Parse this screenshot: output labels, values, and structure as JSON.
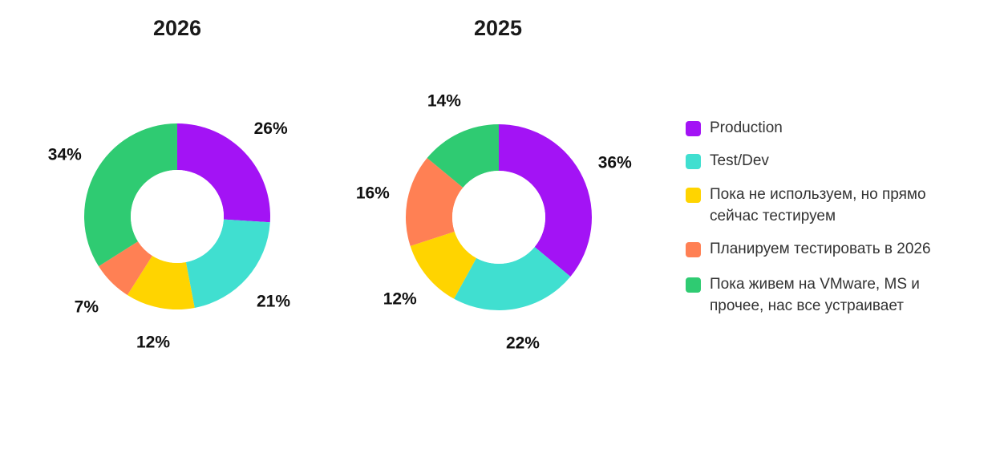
{
  "legend": [
    {
      "label": "Production",
      "color": "#A313F5"
    },
    {
      "label": "Test/Dev",
      "color": "#40DFD0"
    },
    {
      "label": "Пока не используем, но прямо сейчас тестируем",
      "color": "#FFD400"
    },
    {
      "label": "Планируем тестировать в 2026",
      "color": "#FF8054"
    },
    {
      "label": "Пока живем на VMware, MS и прочее, нас все устраивает",
      "color": "#2FCB72"
    }
  ],
  "chart_data": [
    {
      "type": "pie",
      "style": "donut",
      "title": "2026",
      "categories": [
        "Production",
        "Test/Dev",
        "Пока не используем, но прямо сейчас тестируем",
        "Планируем тестировать в 2026",
        "Пока живем на VMware, MS и прочее, нас все устраивает"
      ],
      "values": [
        26,
        21,
        12,
        7,
        34
      ],
      "labels": [
        "26%",
        "21%",
        "12%",
        "7%",
        "34%"
      ],
      "colors": [
        "#A313F5",
        "#40DFD0",
        "#FFD400",
        "#FF8054",
        "#2FCB72"
      ]
    },
    {
      "type": "pie",
      "style": "donut",
      "title": "2025",
      "categories": [
        "Production",
        "Test/Dev",
        "Пока не используем, но прямо сейчас тестируем",
        "Планируем тестировать в 2026",
        "Пока живем на VMware, MS и прочее, нас все устраивает"
      ],
      "values": [
        36,
        22,
        12,
        16,
        14
      ],
      "labels": [
        "36%",
        "22%",
        "12%",
        "16%",
        "14%"
      ],
      "colors": [
        "#A313F5",
        "#40DFD0",
        "#FFD400",
        "#FF8054",
        "#2FCB72"
      ]
    }
  ]
}
